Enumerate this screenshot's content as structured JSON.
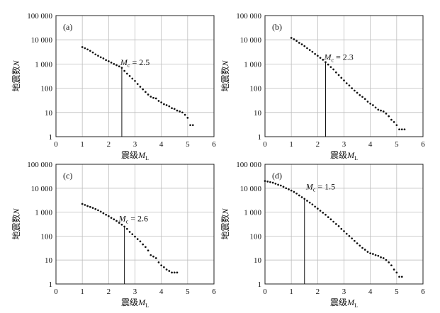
{
  "chart_data": [
    {
      "type": "scatter",
      "panel_label": "(a)",
      "xlabel_prefix": "震级",
      "xlabel_var": "M",
      "xlabel_sub": "L",
      "ylabel_prefix": "地震数",
      "ylabel_var": "N",
      "x_ticks": [
        "0",
        "1",
        "2",
        "3",
        "4",
        "5",
        "6"
      ],
      "y_ticks": [
        "1",
        "10",
        "100",
        "1 000",
        "10 000",
        "100 000"
      ],
      "xlim": [
        0,
        6
      ],
      "ylim": [
        1,
        100000
      ],
      "yscale": "log",
      "grid": true,
      "mc_var": "M",
      "mc_sub": "c",
      "mc_text": "= 2.5",
      "mc_value": 2.5,
      "series": [
        {
          "x": [
            1.0,
            1.1,
            1.2,
            1.3,
            1.4,
            1.5,
            1.6,
            1.7,
            1.8,
            1.9,
            2.0,
            2.1,
            2.2,
            2.3,
            2.4,
            2.5,
            2.6,
            2.7,
            2.8,
            2.9,
            3.0,
            3.1,
            3.2,
            3.3,
            3.4,
            3.5,
            3.6,
            3.7,
            3.8,
            3.9,
            4.0,
            4.1,
            4.2,
            4.3,
            4.4,
            4.5,
            4.6,
            4.7,
            4.8,
            4.9,
            5.0,
            5.1,
            5.2
          ],
          "y": [
            5000,
            4500,
            4000,
            3500,
            3000,
            2500,
            2200,
            1900,
            1700,
            1450,
            1300,
            1150,
            1000,
            900,
            800,
            700,
            520,
            400,
            320,
            250,
            200,
            150,
            115,
            90,
            70,
            55,
            45,
            40,
            38,
            30,
            26,
            22,
            20,
            18,
            15,
            14,
            12,
            11,
            10,
            8,
            6,
            3,
            3
          ]
        }
      ]
    },
    {
      "type": "scatter",
      "panel_label": "(b)",
      "xlabel_prefix": "震级",
      "xlabel_var": "M",
      "xlabel_sub": "L",
      "ylabel_prefix": "地震数",
      "ylabel_var": "N",
      "x_ticks": [
        "0",
        "1",
        "2",
        "3",
        "4",
        "5",
        "6"
      ],
      "y_ticks": [
        "1",
        "10",
        "100",
        "1 000",
        "10 000",
        "100 000"
      ],
      "xlim": [
        0,
        6
      ],
      "ylim": [
        1,
        100000
      ],
      "yscale": "log",
      "grid": true,
      "mc_var": "M",
      "mc_sub": "c",
      "mc_text": "= 2.3",
      "mc_value": 2.3,
      "series": [
        {
          "x": [
            1.0,
            1.1,
            1.2,
            1.3,
            1.4,
            1.5,
            1.6,
            1.7,
            1.8,
            1.9,
            2.0,
            2.1,
            2.2,
            2.3,
            2.4,
            2.5,
            2.6,
            2.7,
            2.8,
            2.9,
            3.0,
            3.1,
            3.2,
            3.3,
            3.4,
            3.5,
            3.6,
            3.7,
            3.8,
            3.9,
            4.0,
            4.1,
            4.2,
            4.3,
            4.4,
            4.5,
            4.6,
            4.7,
            4.8,
            4.9,
            5.0,
            5.1,
            5.2,
            5.3
          ],
          "y": [
            12000,
            10500,
            9000,
            7500,
            6500,
            5500,
            4500,
            3800,
            3200,
            2600,
            2200,
            1800,
            1500,
            1200,
            950,
            750,
            600,
            450,
            350,
            270,
            210,
            160,
            130,
            100,
            80,
            65,
            52,
            44,
            36,
            28,
            23,
            20,
            16,
            13,
            12,
            11,
            9,
            7,
            5,
            4,
            3,
            2,
            2,
            2
          ]
        }
      ]
    },
    {
      "type": "scatter",
      "panel_label": "(c)",
      "xlabel_prefix": "震级",
      "xlabel_var": "M",
      "xlabel_sub": "L",
      "ylabel_prefix": "地震数",
      "ylabel_var": "N",
      "x_ticks": [
        "0",
        "1",
        "2",
        "3",
        "4",
        "5",
        "6"
      ],
      "y_ticks": [
        "1",
        "10",
        "100",
        "1 000",
        "10 000",
        "100 000"
      ],
      "xlim": [
        0,
        6
      ],
      "ylim": [
        1,
        100000
      ],
      "yscale": "log",
      "grid": true,
      "mc_var": "M",
      "mc_sub": "c",
      "mc_text": "= 2.6",
      "mc_value": 2.6,
      "series": [
        {
          "x": [
            1.0,
            1.1,
            1.2,
            1.3,
            1.4,
            1.5,
            1.6,
            1.7,
            1.8,
            1.9,
            2.0,
            2.1,
            2.2,
            2.3,
            2.4,
            2.5,
            2.6,
            2.7,
            2.8,
            2.9,
            3.0,
            3.1,
            3.2,
            3.3,
            3.4,
            3.5,
            3.6,
            3.7,
            3.8,
            3.9,
            4.0,
            4.1,
            4.2,
            4.3,
            4.4,
            4.5,
            4.6
          ],
          "y": [
            2200,
            2000,
            1800,
            1650,
            1500,
            1350,
            1200,
            1050,
            900,
            780,
            680,
            580,
            500,
            430,
            360,
            300,
            250,
            200,
            150,
            120,
            95,
            75,
            60,
            45,
            35,
            25,
            16,
            14,
            12,
            8,
            6,
            5,
            4,
            3.5,
            3,
            3,
            3
          ]
        }
      ]
    },
    {
      "type": "scatter",
      "panel_label": "(d)",
      "xlabel_prefix": "震级",
      "xlabel_var": "M",
      "xlabel_sub": "L",
      "ylabel_prefix": "地震数",
      "ylabel_var": "N",
      "x_ticks": [
        "0",
        "1",
        "2",
        "3",
        "4",
        "5",
        "6"
      ],
      "y_ticks": [
        "1",
        "10",
        "100",
        "1 000",
        "10 000",
        "100 000"
      ],
      "xlim": [
        0,
        6
      ],
      "ylim": [
        1,
        100000
      ],
      "yscale": "log",
      "grid": true,
      "mc_var": "M",
      "mc_sub": "c",
      "mc_text": "= 1.5",
      "mc_value": 1.5,
      "series": [
        {
          "x": [
            0.0,
            0.1,
            0.2,
            0.3,
            0.4,
            0.5,
            0.6,
            0.7,
            0.8,
            0.9,
            1.0,
            1.1,
            1.2,
            1.3,
            1.4,
            1.5,
            1.6,
            1.7,
            1.8,
            1.9,
            2.0,
            2.1,
            2.2,
            2.3,
            2.4,
            2.5,
            2.6,
            2.7,
            2.8,
            2.9,
            3.0,
            3.1,
            3.2,
            3.3,
            3.4,
            3.5,
            3.6,
            3.7,
            3.8,
            3.9,
            4.0,
            4.1,
            4.2,
            4.3,
            4.4,
            4.5,
            4.6,
            4.7,
            4.8,
            4.9,
            5.0,
            5.1,
            5.2
          ],
          "y": [
            20000,
            19000,
            18000,
            17000,
            15500,
            14000,
            13000,
            11500,
            10000,
            9000,
            8000,
            7000,
            6000,
            5000,
            4200,
            3600,
            3000,
            2500,
            2100,
            1700,
            1400,
            1150,
            950,
            780,
            620,
            500,
            400,
            320,
            260,
            200,
            160,
            125,
            100,
            80,
            63,
            50,
            40,
            32,
            27,
            22,
            19,
            18,
            16,
            15,
            13,
            12,
            10,
            8,
            6,
            4,
            3,
            2,
            2
          ]
        }
      ]
    }
  ]
}
